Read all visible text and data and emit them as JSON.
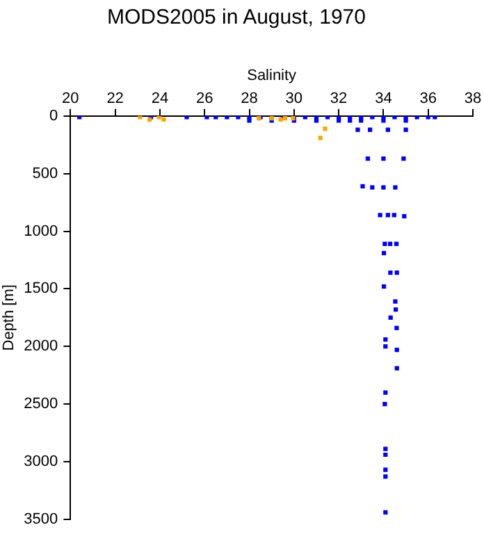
{
  "chart_data": {
    "type": "scatter",
    "title": "MODS2005 in August, 1970",
    "xlabel": "Salinity",
    "ylabel": "Depth [m]",
    "xlim": [
      20,
      38
    ],
    "xticks": [
      20,
      22,
      24,
      26,
      28,
      30,
      32,
      34,
      36,
      38
    ],
    "ylim": [
      3500,
      0
    ],
    "yticks": [
      0,
      500,
      1000,
      1500,
      2000,
      2500,
      3000,
      3500
    ],
    "grid": false,
    "legend": false,
    "marker": "square",
    "series": [
      {
        "color": "#0000ff",
        "x": [
          20.4,
          23.6,
          25.2,
          26.1,
          26.5,
          27,
          27.5,
          28,
          28.5,
          29,
          29.5,
          30,
          30.5,
          31,
          31.5,
          32,
          32.5,
          33,
          33.5,
          34,
          34.5,
          35,
          35.5,
          36,
          36.3,
          28,
          29,
          30,
          31,
          32,
          32.5,
          33,
          34,
          35,
          32.85,
          33.4,
          34.2,
          35,
          33.3,
          34,
          34.9,
          33.5,
          34,
          34.53,
          33.07,
          33.85,
          34.2,
          34.48,
          34.93,
          34.06,
          34.3,
          34.58,
          34.02,
          34.31,
          34.6,
          34.02,
          34.55,
          34.53,
          34.32,
          34.59,
          34.09,
          34.09,
          34.6,
          34.6,
          34.09,
          34.06,
          34.09,
          34.09,
          34.09,
          34.09,
          34.09
        ],
        "values": [
          10,
          10,
          10,
          10,
          10,
          10,
          10,
          10,
          10,
          10,
          10,
          10,
          10,
          10,
          10,
          10,
          10,
          10,
          10,
          10,
          10,
          10,
          10,
          10,
          10,
          40,
          40,
          40,
          40,
          40,
          40,
          40,
          40,
          40,
          120,
          120,
          120,
          120,
          370,
          370,
          370,
          620,
          620,
          620,
          610,
          860,
          860,
          860,
          870,
          1110,
          1110,
          1110,
          1190,
          1360,
          1360,
          1480,
          1680,
          1610,
          1750,
          1840,
          1940,
          2000,
          2030,
          2190,
          2400,
          2500,
          2890,
          2940,
          3070,
          3130,
          3440
        ]
      },
      {
        "color": "#ffa500",
        "x": [
          23.11,
          23.54,
          23.96,
          24.17,
          28.43,
          29,
          29.4,
          29.6,
          29.96,
          31.39,
          31.18
        ],
        "values": [
          10,
          30,
          10,
          30,
          20,
          20,
          30,
          20,
          20,
          110,
          190
        ]
      }
    ]
  }
}
